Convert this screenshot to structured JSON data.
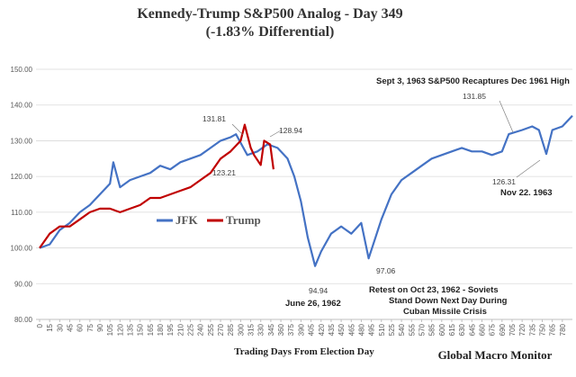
{
  "chart_data": {
    "type": "line",
    "title": "Kennedy-Trump  S&P500 Analog  - Day 349",
    "subtitle": "(-1.83% Differential)",
    "x_label": "Trading  Days From  Election Day",
    "source": "Global Macro Monitor",
    "series": [
      {
        "name": "JFK",
        "color": "#4472c4",
        "x": [
          0,
          15,
          30,
          45,
          60,
          75,
          90,
          105,
          110,
          120,
          135,
          150,
          165,
          180,
          195,
          210,
          225,
          240,
          255,
          270,
          285,
          293,
          310,
          325,
          340,
          355,
          370,
          380,
          390,
          400,
          411,
          420,
          435,
          450,
          465,
          480,
          491,
          510,
          525,
          540,
          555,
          570,
          585,
          600,
          615,
          630,
          645,
          660,
          675,
          690,
          700,
          720,
          735,
          745,
          756,
          765,
          780,
          795
        ],
        "values": [
          100,
          101,
          105,
          107,
          110,
          112,
          115,
          118,
          124,
          117,
          119,
          120,
          121,
          123,
          122,
          124,
          125,
          126,
          128,
          130,
          131,
          131.81,
          126,
          127,
          129,
          128,
          125,
          120,
          113,
          103,
          94.94,
          99,
          104,
          106,
          104,
          107,
          97.06,
          108,
          115,
          119,
          121,
          123,
          125,
          126,
          127,
          128,
          127,
          127,
          126,
          127,
          131.85,
          133,
          134,
          133,
          126.31,
          133,
          134,
          137
        ]
      },
      {
        "name": "Trump",
        "color": "#c00000",
        "x": [
          0,
          15,
          30,
          45,
          60,
          75,
          90,
          105,
          120,
          135,
          150,
          165,
          180,
          195,
          210,
          225,
          240,
          255,
          270,
          285,
          300,
          306,
          315,
          320,
          330,
          335,
          344,
          349
        ],
        "values": [
          100,
          104,
          106,
          106,
          108,
          110,
          111,
          111,
          110,
          111,
          112,
          114,
          114,
          115,
          116,
          117,
          119,
          121,
          125,
          127,
          130,
          134.5,
          128,
          126,
          123.21,
          130,
          128.94,
          122
        ]
      }
    ],
    "xlim": [
      0,
      795
    ],
    "xticks": [
      0,
      15,
      30,
      45,
      60,
      75,
      90,
      105,
      120,
      135,
      150,
      165,
      180,
      195,
      210,
      225,
      240,
      255,
      270,
      285,
      300,
      315,
      330,
      345,
      360,
      375,
      390,
      405,
      420,
      435,
      450,
      465,
      480,
      495,
      510,
      525,
      540,
      555,
      570,
      585,
      600,
      615,
      630,
      645,
      660,
      675,
      690,
      705,
      720,
      735,
      750,
      765,
      780
    ],
    "ylim": [
      80,
      150
    ],
    "yticks": [
      {
        "value": 80,
        "label": "80.00"
      },
      {
        "value": 90,
        "label": "90.00"
      },
      {
        "value": 100,
        "label": "100.00"
      },
      {
        "value": 110,
        "label": "110.00"
      },
      {
        "value": 120,
        "label": "120.00"
      },
      {
        "value": 130,
        "label": "130.00"
      },
      {
        "value": 140,
        "label": "140.00"
      },
      {
        "value": 150,
        "label": "150.00"
      }
    ],
    "grid": true,
    "annotations": [
      "131.81",
      "128.94",
      "123.21",
      "94.94",
      "June 26, 1962",
      "97.06",
      "Retest on Oct 23, 1962 - Soviets",
      "Stand Down Next Day During",
      "Cuban Missile Crisis",
      "Sept 3, 1963   S&P500 Recaptures Dec 1961 High",
      "131.85",
      "126.31",
      "Nov 22. 1963"
    ]
  }
}
